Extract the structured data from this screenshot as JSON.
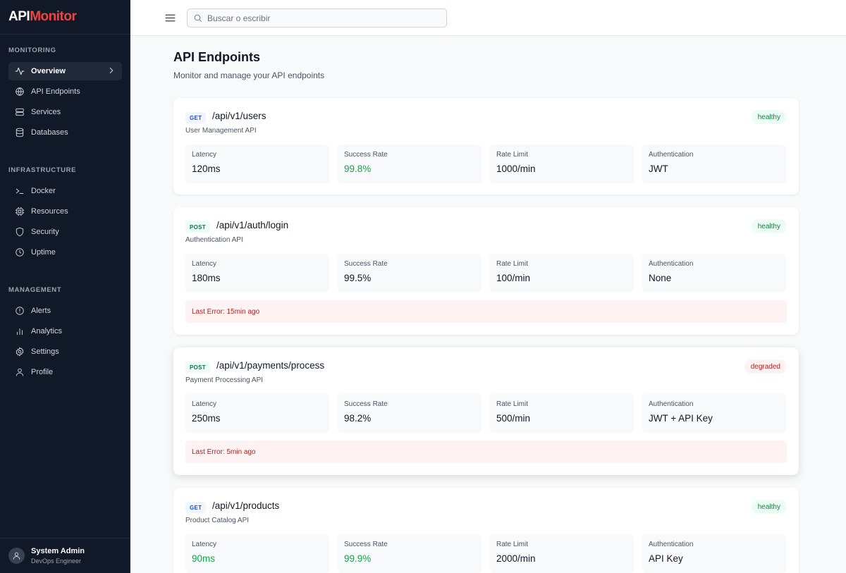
{
  "brand": {
    "part1": "API",
    "part2": "Monitor"
  },
  "sidebar": {
    "sections": [
      {
        "title": "MONITORING",
        "items": [
          {
            "label": "Overview",
            "icon": "activity-icon",
            "active": true
          },
          {
            "label": "API Endpoints",
            "icon": "globe-icon"
          },
          {
            "label": "Services",
            "icon": "server-icon"
          },
          {
            "label": "Databases",
            "icon": "database-icon"
          }
        ]
      },
      {
        "title": "INFRASTRUCTURE",
        "items": [
          {
            "label": "Docker",
            "icon": "terminal-icon"
          },
          {
            "label": "Resources",
            "icon": "cpu-icon"
          },
          {
            "label": "Security",
            "icon": "shield-icon"
          },
          {
            "label": "Uptime",
            "icon": "clock-icon"
          }
        ]
      },
      {
        "title": "MANAGEMENT",
        "items": [
          {
            "label": "Alerts",
            "icon": "alert-circle-icon"
          },
          {
            "label": "Analytics",
            "icon": "bar-chart-icon"
          },
          {
            "label": "Settings",
            "icon": "gear-icon"
          },
          {
            "label": "Profile",
            "icon": "user-icon"
          }
        ]
      }
    ]
  },
  "user": {
    "name": "System Admin",
    "role": "DevOps Engineer"
  },
  "search": {
    "placeholder": "Buscar o escribir",
    "value": ""
  },
  "page": {
    "title": "API Endpoints",
    "subtitle": "Monitor and manage your API endpoints"
  },
  "metric_labels": {
    "latency": "Latency",
    "success_rate": "Success Rate",
    "rate_limit": "Rate Limit",
    "auth": "Authentication"
  },
  "colors": {
    "sidebar_bg": "#111827",
    "brand_accent": "#ef4444",
    "healthy": "#15803d",
    "degraded": "#b91c1c",
    "success_green": "#16a34a"
  },
  "endpoints": [
    {
      "method": "GET",
      "path": "/api/v1/users",
      "description": "User Management API",
      "status": "healthy",
      "latency": "120ms",
      "success_rate": "99.8%",
      "rate_limit": "1000/min",
      "auth": "JWT",
      "last_error": ""
    },
    {
      "method": "POST",
      "path": "/api/v1/auth/login",
      "description": "Authentication API",
      "status": "healthy",
      "latency": "180ms",
      "success_rate": "99.5%",
      "rate_limit": "100/min",
      "auth": "None",
      "last_error": "Last Error: 15min ago"
    },
    {
      "method": "POST",
      "path": "/api/v1/payments/process",
      "description": "Payment Processing API",
      "status": "degraded",
      "latency": "250ms",
      "success_rate": "98.2%",
      "rate_limit": "500/min",
      "auth": "JWT + API Key",
      "last_error": "Last Error: 5min ago"
    },
    {
      "method": "GET",
      "path": "/api/v1/products",
      "description": "Product Catalog API",
      "status": "healthy",
      "latency": "90ms",
      "success_rate": "99.9%",
      "rate_limit": "2000/min",
      "auth": "API Key",
      "last_error": ""
    }
  ]
}
